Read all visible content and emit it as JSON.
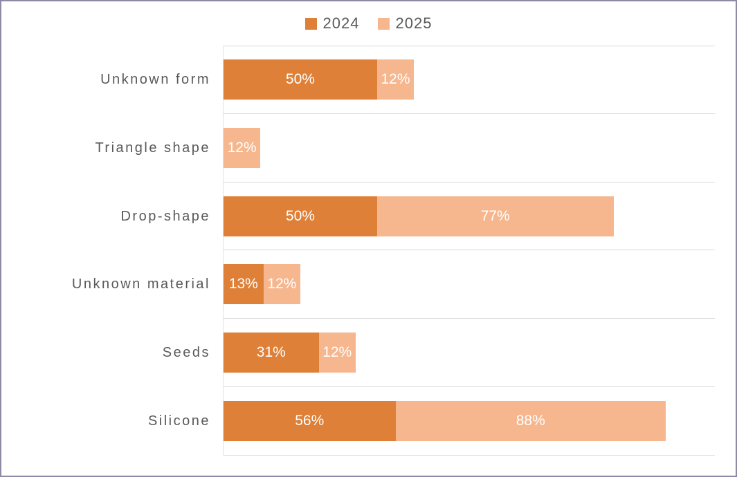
{
  "chart_data": {
    "type": "bar",
    "orientation": "horizontal",
    "stacked": true,
    "title": "",
    "xlabel": "",
    "ylabel": "",
    "categories": [
      "Unknown form",
      "Triangle shape",
      "Drop-shape",
      "Unknown material",
      "Seeds",
      "Silicone"
    ],
    "series": [
      {
        "name": "2024",
        "color": "#DE8038",
        "values": [
          50,
          0,
          50,
          13,
          31,
          56
        ]
      },
      {
        "name": "2025",
        "color": "#F6B78F",
        "values": [
          12,
          12,
          77,
          12,
          12,
          88
        ]
      }
    ],
    "data_labels": [
      [
        "50%",
        "",
        "50%",
        "13%",
        "31%",
        "56%"
      ],
      [
        "12%",
        "12%",
        "77%",
        "12%",
        "12%",
        "88%"
      ]
    ],
    "value_suffix": "%",
    "xlim": [
      0,
      160
    ],
    "legend_position": "top-center",
    "gridlines": "horizontal-category-separators",
    "colors": {
      "series_2024": "#DE8038",
      "series_2025": "#F6B78F",
      "gridline": "#D9D9D9",
      "axis_line": "#E2E2E2",
      "category_label_text": "#595959",
      "legend_text": "#595959",
      "data_label_text": "#FFFFFF",
      "frame_border": "#8E89A4",
      "background": "#FFFFFF"
    }
  },
  "legend": {
    "items": [
      {
        "label": "2024"
      },
      {
        "label": "2025"
      }
    ]
  }
}
